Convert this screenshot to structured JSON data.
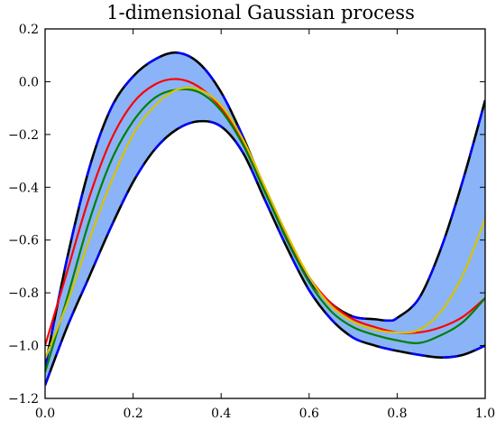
{
  "chart_data": {
    "type": "line",
    "title": "1-dimensional Gaussian process",
    "xlabel": "",
    "ylabel": "",
    "xlim": [
      0.0,
      1.0
    ],
    "ylim": [
      -1.2,
      0.2
    ],
    "xticks": [
      "0.0",
      "0.2",
      "0.4",
      "0.6",
      "0.8",
      "1.0"
    ],
    "yticks": [
      "0.2",
      "0.0",
      "−0.2",
      "−0.4",
      "−0.6",
      "−0.8",
      "−1.0",
      "−1.2"
    ],
    "grid": false,
    "band": {
      "fill_color": "#8ab4f7",
      "edge_color": "#0000ff",
      "upper": [
        [
          0.0,
          -1.08
        ],
        [
          0.05,
          -0.67
        ],
        [
          0.1,
          -0.33
        ],
        [
          0.15,
          -0.1
        ],
        [
          0.2,
          0.02
        ],
        [
          0.25,
          0.085
        ],
        [
          0.3,
          0.11
        ],
        [
          0.35,
          0.07
        ],
        [
          0.4,
          -0.04
        ],
        [
          0.45,
          -0.21
        ],
        [
          0.5,
          -0.41
        ],
        [
          0.55,
          -0.6
        ],
        [
          0.6,
          -0.75
        ],
        [
          0.65,
          -0.84
        ],
        [
          0.7,
          -0.89
        ],
        [
          0.75,
          -0.9
        ],
        [
          0.78,
          -0.905
        ],
        [
          0.8,
          -0.895
        ],
        [
          0.85,
          -0.82
        ],
        [
          0.9,
          -0.63
        ],
        [
          0.95,
          -0.37
        ],
        [
          1.0,
          -0.07
        ]
      ],
      "lower": [
        [
          0.0,
          -1.15
        ],
        [
          0.05,
          -0.93
        ],
        [
          0.1,
          -0.74
        ],
        [
          0.15,
          -0.55
        ],
        [
          0.2,
          -0.38
        ],
        [
          0.25,
          -0.255
        ],
        [
          0.3,
          -0.18
        ],
        [
          0.35,
          -0.15
        ],
        [
          0.4,
          -0.17
        ],
        [
          0.45,
          -0.27
        ],
        [
          0.5,
          -0.45
        ],
        [
          0.55,
          -0.63
        ],
        [
          0.6,
          -0.79
        ],
        [
          0.65,
          -0.9
        ],
        [
          0.7,
          -0.97
        ],
        [
          0.75,
          -1.0
        ],
        [
          0.8,
          -1.02
        ],
        [
          0.85,
          -1.035
        ],
        [
          0.9,
          -1.045
        ],
        [
          0.95,
          -1.035
        ],
        [
          1.0,
          -1.0
        ]
      ]
    },
    "series": [
      {
        "color": "#ff0000",
        "points": [
          [
            0.0,
            -1.0
          ],
          [
            0.05,
            -0.72
          ],
          [
            0.1,
            -0.44
          ],
          [
            0.15,
            -0.22
          ],
          [
            0.2,
            -0.08
          ],
          [
            0.25,
            -0.01
          ],
          [
            0.3,
            0.01
          ],
          [
            0.35,
            -0.02
          ],
          [
            0.4,
            -0.1
          ],
          [
            0.45,
            -0.23
          ],
          [
            0.5,
            -0.41
          ],
          [
            0.55,
            -0.59
          ],
          [
            0.6,
            -0.74
          ],
          [
            0.65,
            -0.84
          ],
          [
            0.7,
            -0.9
          ],
          [
            0.75,
            -0.93
          ],
          [
            0.8,
            -0.95
          ],
          [
            0.85,
            -0.95
          ],
          [
            0.9,
            -0.93
          ],
          [
            0.95,
            -0.89
          ],
          [
            1.0,
            -0.82
          ]
        ]
      },
      {
        "color": "#008000",
        "points": [
          [
            0.0,
            -1.1
          ],
          [
            0.05,
            -0.82
          ],
          [
            0.1,
            -0.53
          ],
          [
            0.15,
            -0.3
          ],
          [
            0.2,
            -0.15
          ],
          [
            0.25,
            -0.06
          ],
          [
            0.3,
            -0.03
          ],
          [
            0.35,
            -0.04
          ],
          [
            0.4,
            -0.11
          ],
          [
            0.45,
            -0.24
          ],
          [
            0.5,
            -0.42
          ],
          [
            0.55,
            -0.6
          ],
          [
            0.6,
            -0.76
          ],
          [
            0.65,
            -0.87
          ],
          [
            0.7,
            -0.93
          ],
          [
            0.75,
            -0.96
          ],
          [
            0.8,
            -0.98
          ],
          [
            0.85,
            -0.99
          ],
          [
            0.9,
            -0.96
          ],
          [
            0.95,
            -0.91
          ],
          [
            1.0,
            -0.82
          ]
        ]
      },
      {
        "color": "#d4c400",
        "points": [
          [
            0.0,
            -1.05
          ],
          [
            0.05,
            -0.84
          ],
          [
            0.1,
            -0.6
          ],
          [
            0.15,
            -0.38
          ],
          [
            0.2,
            -0.2
          ],
          [
            0.25,
            -0.09
          ],
          [
            0.3,
            -0.03
          ],
          [
            0.35,
            -0.03
          ],
          [
            0.4,
            -0.09
          ],
          [
            0.45,
            -0.22
          ],
          [
            0.5,
            -0.4
          ],
          [
            0.55,
            -0.58
          ],
          [
            0.6,
            -0.74
          ],
          [
            0.65,
            -0.85
          ],
          [
            0.7,
            -0.91
          ],
          [
            0.75,
            -0.94
          ],
          [
            0.8,
            -0.95
          ],
          [
            0.85,
            -0.94
          ],
          [
            0.9,
            -0.87
          ],
          [
            0.95,
            -0.73
          ],
          [
            1.0,
            -0.52
          ]
        ]
      }
    ]
  }
}
